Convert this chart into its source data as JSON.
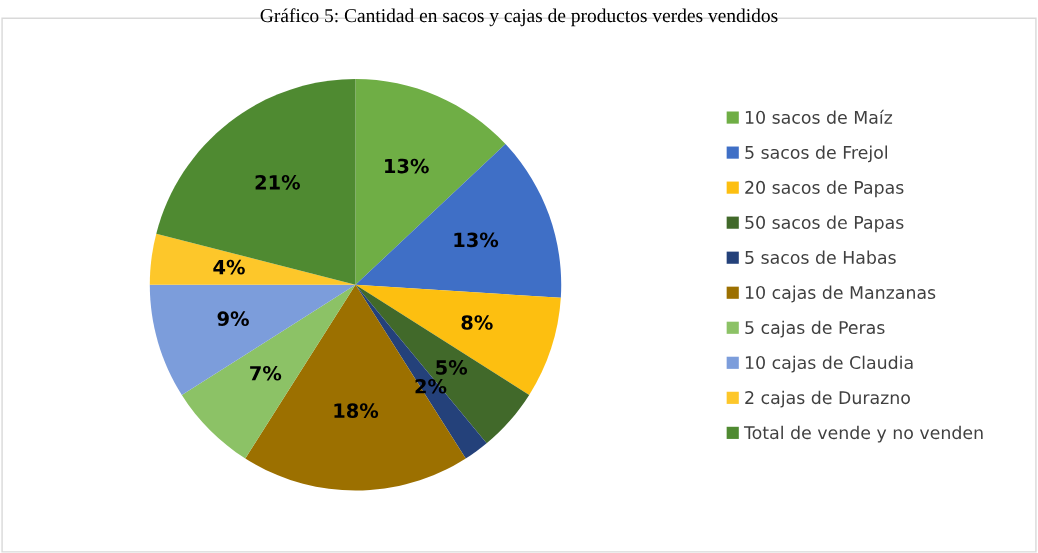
{
  "chart_data": {
    "type": "pie",
    "title": "Gráfico 5: Cantidad en sacos y cajas de productos verdes vendidos",
    "categories": [
      "10 sacos de Maíz",
      "5 sacos de Frejol",
      "20 sacos de Papas",
      "50 sacos de Papas",
      "5 sacos de Habas",
      "10 cajas de Manzanas",
      "5 cajas de Peras",
      "10 cajas de Claudia",
      "2 cajas de Durazno",
      "Total de vende y no venden"
    ],
    "values": [
      13,
      13,
      8,
      5,
      2,
      18,
      7,
      9,
      4,
      21
    ],
    "colors": [
      "#6fae45",
      "#3f6fc6",
      "#fdbf10",
      "#41692a",
      "#24417a",
      "#9c7000",
      "#8cc266",
      "#7c9ddb",
      "#fdc72a",
      "#4f8a31"
    ],
    "value_labels": [
      "13%",
      "13%",
      "8%",
      "5%",
      "2%",
      "18%",
      "7%",
      "9%",
      "4%",
      "21%"
    ],
    "legend": "right"
  }
}
